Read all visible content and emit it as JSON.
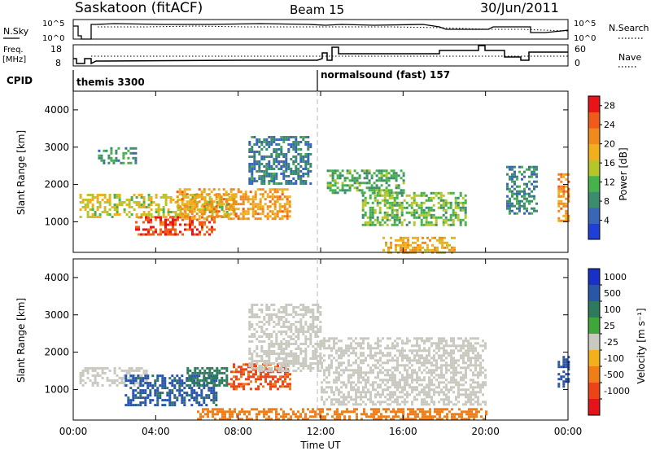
{
  "header": {
    "title": "Saskatoon (fitACF)",
    "beam": "Beam 15",
    "date": "30/Jun/2011"
  },
  "top_panels": {
    "nsky_label": "N.Sky",
    "nsky_ticks": [
      "10^5",
      "10^0"
    ],
    "nsearch_label": "N.Search",
    "nsearch_ticks": [
      "10^5",
      "10^0"
    ],
    "freq_label_line1": "Freq.",
    "freq_label_line2": "[MHz]",
    "freq_ticks": [
      "18",
      "8"
    ],
    "nave_label": "Nave",
    "nave_ticks": [
      "60",
      "0"
    ],
    "cpid_label": "CPID",
    "cpid_segments": [
      {
        "name": "themis 3300",
        "start_hour": 0,
        "end_hour": 12
      },
      {
        "name": "normalsound (fast) 157",
        "start_hour": 12,
        "end_hour": 24
      }
    ]
  },
  "colors": {
    "power": [
      "#1f3fd6",
      "#3a66b8",
      "#3c8c6e",
      "#48b24a",
      "#b6c62a",
      "#f0b01e",
      "#f08a1c",
      "#f05a1a",
      "#e8141a"
    ],
    "velocity": [
      "#1a2fc6",
      "#2a56a8",
      "#2e7a5c",
      "#3fa63c",
      "#c9c9c0",
      "#f2b01a",
      "#f07e18",
      "#ec4416",
      "#e4141a"
    ]
  },
  "chart_data": [
    {
      "type": "heatmap",
      "quantity": "Power",
      "xlabel": "Time UT",
      "ylabel": "Slant Range [km]",
      "x_ticks": [
        "00:00",
        "04:00",
        "08:00",
        "12:00",
        "16:00",
        "20:00",
        "00:00"
      ],
      "x_range_hours": [
        0,
        24
      ],
      "y_ticks": [
        1000,
        2000,
        3000,
        4000
      ],
      "y_range_km": [
        180,
        4500
      ],
      "colorbar_label": "Power [dB]",
      "colorbar_ticks": [
        4,
        8,
        12,
        16,
        20,
        24,
        28
      ],
      "colorbar_range": [
        0,
        30
      ],
      "regions": [
        {
          "t0": 0.3,
          "t1": 7.8,
          "r0": 1100,
          "r1": 1750,
          "value": 16
        },
        {
          "t0": 3.0,
          "t1": 6.8,
          "r0": 650,
          "r1": 1150,
          "value": 27
        },
        {
          "t0": 5.0,
          "t1": 10.5,
          "r0": 1100,
          "r1": 1900,
          "value": 21
        },
        {
          "t0": 1.2,
          "t1": 3.0,
          "r0": 2600,
          "r1": 3000,
          "value": 8
        },
        {
          "t0": 8.5,
          "t1": 11.5,
          "r0": 2000,
          "r1": 3300,
          "value": 6
        },
        {
          "t0": 12.3,
          "t1": 16.0,
          "r0": 1800,
          "r1": 2400,
          "value": 10
        },
        {
          "t0": 14.0,
          "t1": 19.0,
          "r0": 900,
          "r1": 1800,
          "value": 12
        },
        {
          "t0": 15.0,
          "t1": 18.5,
          "r0": 200,
          "r1": 600,
          "value": 20
        },
        {
          "t0": 21.0,
          "t1": 22.5,
          "r0": 1200,
          "r1": 2500,
          "value": 7
        },
        {
          "t0": 23.5,
          "t1": 24.0,
          "r0": 1000,
          "r1": 2300,
          "value": 22
        }
      ]
    },
    {
      "type": "heatmap",
      "quantity": "Velocity",
      "xlabel": "Time UT",
      "ylabel": "Slant Range [km]",
      "x_ticks": [
        "00:00",
        "04:00",
        "08:00",
        "12:00",
        "16:00",
        "20:00",
        "00:00"
      ],
      "x_range_hours": [
        0,
        24
      ],
      "y_ticks": [
        1000,
        2000,
        3000,
        4000
      ],
      "y_range_km": [
        180,
        4500
      ],
      "colorbar_label": "Velocity [m s⁻¹]",
      "colorbar_ticks": [
        "1000",
        "500",
        "100",
        "25",
        "-25",
        "-100",
        "-500",
        "-1000"
      ],
      "regions": [
        {
          "t0": 0.3,
          "t1": 3.5,
          "r0": 1100,
          "r1": 1600,
          "value": 0
        },
        {
          "t0": 2.5,
          "t1": 7.0,
          "r0": 600,
          "r1": 1400,
          "value": 600
        },
        {
          "t0": 5.5,
          "t1": 7.5,
          "r0": 1100,
          "r1": 1600,
          "value": 200
        },
        {
          "t0": 7.5,
          "t1": 10.5,
          "r0": 1000,
          "r1": 1700,
          "value": -600
        },
        {
          "t0": 8.5,
          "t1": 12.0,
          "r0": 1500,
          "r1": 3300,
          "value": 0
        },
        {
          "t0": 12.0,
          "t1": 20.0,
          "r0": 600,
          "r1": 2400,
          "value": 0
        },
        {
          "t0": 6.0,
          "t1": 20.0,
          "r0": 200,
          "r1": 500,
          "value": -150
        },
        {
          "t0": 23.5,
          "t1": 24.0,
          "r0": 1100,
          "r1": 1900,
          "value": 800
        }
      ]
    }
  ]
}
